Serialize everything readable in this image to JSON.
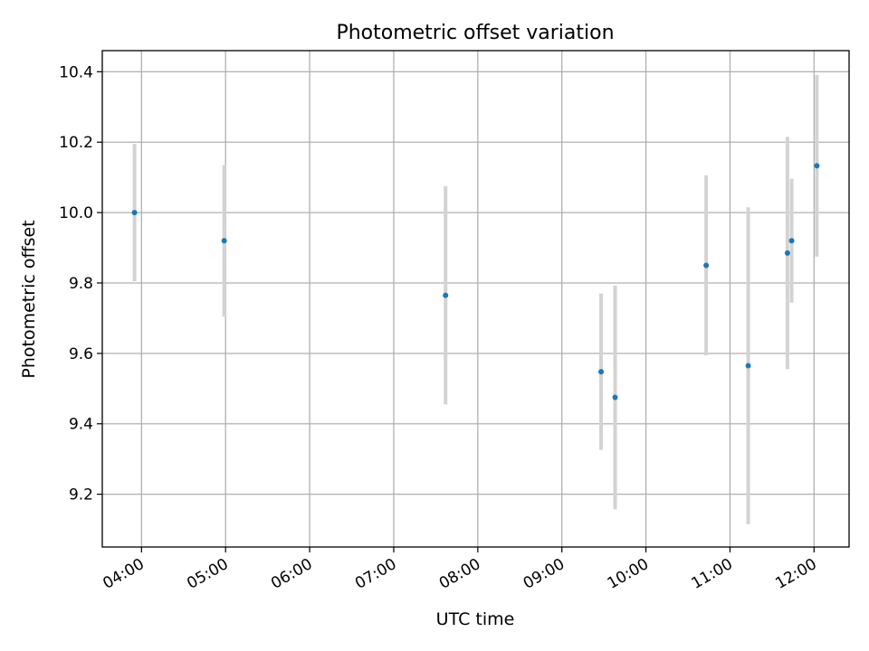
{
  "chart_data": {
    "type": "scatter",
    "title": "Photometric offset variation",
    "xlabel": "UTC time",
    "ylabel": "Photometric offset",
    "x_ticks": [
      "04:00",
      "05:00",
      "06:00",
      "07:00",
      "08:00",
      "09:00",
      "10:00",
      "11:00",
      "12:00"
    ],
    "y_ticks": [
      "9.2",
      "9.4",
      "9.6",
      "9.8",
      "10.0",
      "10.2",
      "10.4"
    ],
    "xlim": [
      "03:32",
      "12:25"
    ],
    "ylim": [
      9.05,
      10.46
    ],
    "grid": true,
    "legend": "none",
    "error_bars": true,
    "points": [
      {
        "x": "03:55",
        "y": 10.0,
        "err": 0.195
      },
      {
        "x": "04:59",
        "y": 9.92,
        "err": 0.215
      },
      {
        "x": "07:37",
        "y": 9.765,
        "err": 0.31
      },
      {
        "x": "09:28",
        "y": 9.548,
        "err": 0.222
      },
      {
        "x": "09:38",
        "y": 9.475,
        "err": 0.318
      },
      {
        "x": "10:43",
        "y": 9.85,
        "err": 0.256
      },
      {
        "x": "11:13",
        "y": 9.565,
        "err": 0.45
      },
      {
        "x": "11:41",
        "y": 9.885,
        "err": 0.33
      },
      {
        "x": "11:44",
        "y": 9.92,
        "err": 0.176
      },
      {
        "x": "12:02",
        "y": 10.133,
        "err": 0.258
      }
    ],
    "colors": {
      "point": "#1f77b4",
      "errorbar": "#d3d3d3",
      "grid": "#b0b0b0"
    }
  }
}
